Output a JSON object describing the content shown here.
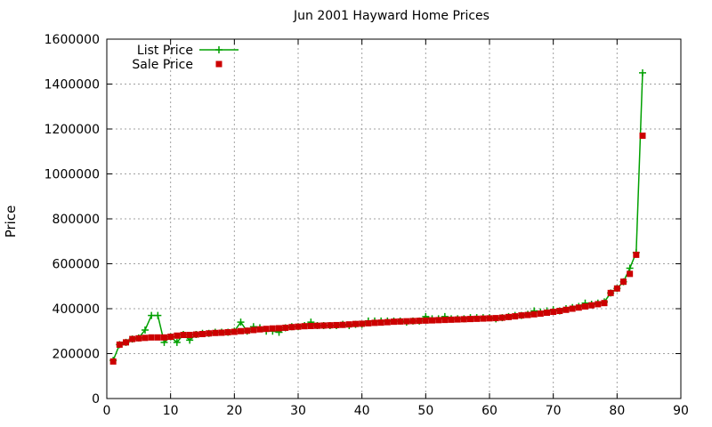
{
  "chart_data": {
    "type": "line",
    "title": "Jun 2001 Hayward Home Prices",
    "xlabel": "",
    "ylabel": "Price",
    "xlim": [
      0,
      90
    ],
    "ylim": [
      0,
      1600000
    ],
    "xticks": [
      0,
      10,
      20,
      30,
      40,
      50,
      60,
      70,
      80,
      90
    ],
    "yticks": [
      0,
      200000,
      400000,
      600000,
      800000,
      1000000,
      1200000,
      1400000,
      1600000
    ],
    "grid": true,
    "legend_position": "top-left",
    "series": [
      {
        "name": "List Price",
        "style": "line-plus",
        "color": "#00a000",
        "x": [
          1,
          2,
          3,
          4,
          5,
          6,
          7,
          8,
          9,
          10,
          11,
          12,
          13,
          14,
          15,
          16,
          17,
          18,
          19,
          20,
          21,
          22,
          23,
          24,
          25,
          26,
          27,
          28,
          29,
          30,
          31,
          32,
          33,
          34,
          35,
          36,
          37,
          38,
          39,
          40,
          41,
          42,
          43,
          44,
          45,
          46,
          47,
          48,
          49,
          50,
          51,
          52,
          53,
          54,
          55,
          56,
          57,
          58,
          59,
          60,
          61,
          62,
          63,
          64,
          65,
          66,
          67,
          68,
          69,
          70,
          71,
          72,
          73,
          74,
          75,
          76,
          77,
          78,
          79,
          80,
          81,
          82,
          83,
          84
        ],
        "values": [
          170000,
          240000,
          250000,
          265000,
          270000,
          305000,
          370000,
          370000,
          250000,
          275000,
          250000,
          285000,
          260000,
          285000,
          290000,
          290000,
          295000,
          295000,
          295000,
          300000,
          340000,
          300000,
          320000,
          315000,
          300000,
          300000,
          295000,
          315000,
          320000,
          320000,
          325000,
          340000,
          325000,
          325000,
          325000,
          325000,
          330000,
          325000,
          330000,
          330000,
          345000,
          345000,
          345000,
          345000,
          345000,
          345000,
          340000,
          345000,
          345000,
          365000,
          355000,
          355000,
          365000,
          355000,
          355000,
          355000,
          360000,
          360000,
          360000,
          360000,
          355000,
          360000,
          365000,
          370000,
          370000,
          375000,
          390000,
          385000,
          390000,
          395000,
          390000,
          400000,
          405000,
          410000,
          425000,
          420000,
          425000,
          430000,
          470000,
          490000,
          520000,
          580000,
          650000,
          1450000
        ]
      },
      {
        "name": "Sale Price",
        "style": "points-square",
        "color": "#cc0000",
        "x": [
          1,
          2,
          3,
          4,
          5,
          6,
          7,
          8,
          9,
          10,
          11,
          12,
          13,
          14,
          15,
          16,
          17,
          18,
          19,
          20,
          21,
          22,
          23,
          24,
          25,
          26,
          27,
          28,
          29,
          30,
          31,
          32,
          33,
          34,
          35,
          36,
          37,
          38,
          39,
          40,
          41,
          42,
          43,
          44,
          45,
          46,
          47,
          48,
          49,
          50,
          51,
          52,
          53,
          54,
          55,
          56,
          57,
          58,
          59,
          60,
          61,
          62,
          63,
          64,
          65,
          66,
          67,
          68,
          69,
          70,
          71,
          72,
          73,
          74,
          75,
          76,
          77,
          78,
          79,
          80,
          81,
          82,
          83,
          84
        ],
        "values": [
          165000,
          240000,
          250000,
          265000,
          268000,
          270000,
          272000,
          272000,
          272000,
          275000,
          280000,
          283000,
          283000,
          285000,
          287000,
          290000,
          292000,
          293000,
          295000,
          297000,
          300000,
          302000,
          305000,
          308000,
          310000,
          312000,
          313000,
          315000,
          318000,
          320000,
          322000,
          323000,
          324000,
          325000,
          326000,
          327000,
          328000,
          330000,
          332000,
          333000,
          335000,
          337000,
          338000,
          340000,
          342000,
          343000,
          344000,
          345000,
          346000,
          347000,
          348000,
          349000,
          350000,
          351000,
          352000,
          353000,
          354000,
          355000,
          356000,
          357000,
          358000,
          360000,
          363000,
          366000,
          370000,
          372000,
          375000,
          378000,
          382000,
          386000,
          390000,
          395000,
          400000,
          405000,
          410000,
          415000,
          420000,
          425000,
          470000,
          490000,
          520000,
          555000,
          640000,
          1170000
        ]
      }
    ]
  }
}
